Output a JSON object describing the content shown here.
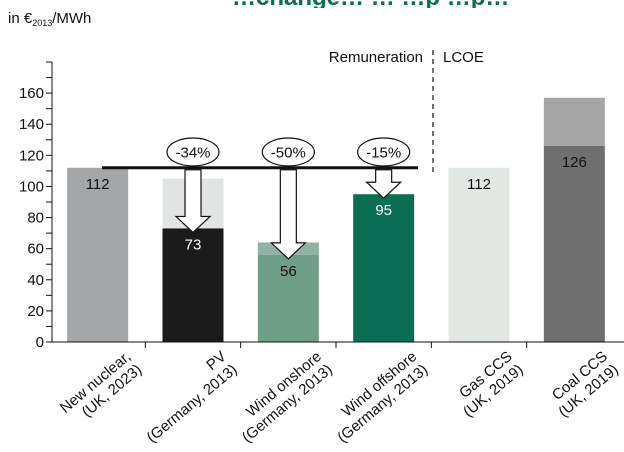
{
  "chart_data": {
    "type": "bar",
    "title": "…change… … …p …p…",
    "unit": {
      "prefix": "in €",
      "subscript": "2013",
      "suffix": "/MWh"
    },
    "ylim": [
      0,
      180
    ],
    "yticks": [
      0,
      20,
      40,
      60,
      80,
      100,
      120,
      140,
      160
    ],
    "grid": false,
    "reference_line": 112,
    "section_labels": [
      "Remuneration",
      "LCOE"
    ],
    "categories": [
      {
        "line1": "New nuclear,",
        "line2": "(UK, 2023)"
      },
      {
        "line1": "PV",
        "line2": "(Germany, 2013)"
      },
      {
        "line1": "Wind onshore",
        "line2": "(Germany, 2013)"
      },
      {
        "line1": "Wind offshore",
        "line2": "(Germany, 2013)"
      },
      {
        "line1": "Gas CCS",
        "line2": "(UK, 2019)"
      },
      {
        "line1": "Coal CCS",
        "line2": "(UK, 2019)"
      }
    ],
    "bars": [
      {
        "value": 112,
        "upper": null,
        "label": "112",
        "change": null,
        "color": "#a5a6a8",
        "upper_color": null,
        "label_color": "#111111"
      },
      {
        "value": 73,
        "upper": 105,
        "label": "73",
        "change": "-34%",
        "color": "#1a1a1a",
        "upper_color": "#e2e3e3",
        "label_color": "#ffffff"
      },
      {
        "value": 56,
        "upper": 64,
        "label": "56",
        "change": "-50%",
        "color": "#6e9e88",
        "upper_color": "#8fb3a3",
        "label_color": "#111111"
      },
      {
        "value": 95,
        "upper": null,
        "label": "95",
        "change": "-15%",
        "color": "#0a6e55",
        "upper_color": null,
        "label_color": "#ffffff"
      },
      {
        "value": 112,
        "upper": null,
        "label": "112",
        "change": null,
        "color": "#e3e8e5",
        "upper_color": null,
        "label_color": "#111111"
      },
      {
        "value": 126,
        "upper": 157,
        "label": "126",
        "change": null,
        "color": "#6f6f6f",
        "upper_color": "#a6a6a6",
        "label_color": "#111111"
      }
    ]
  }
}
